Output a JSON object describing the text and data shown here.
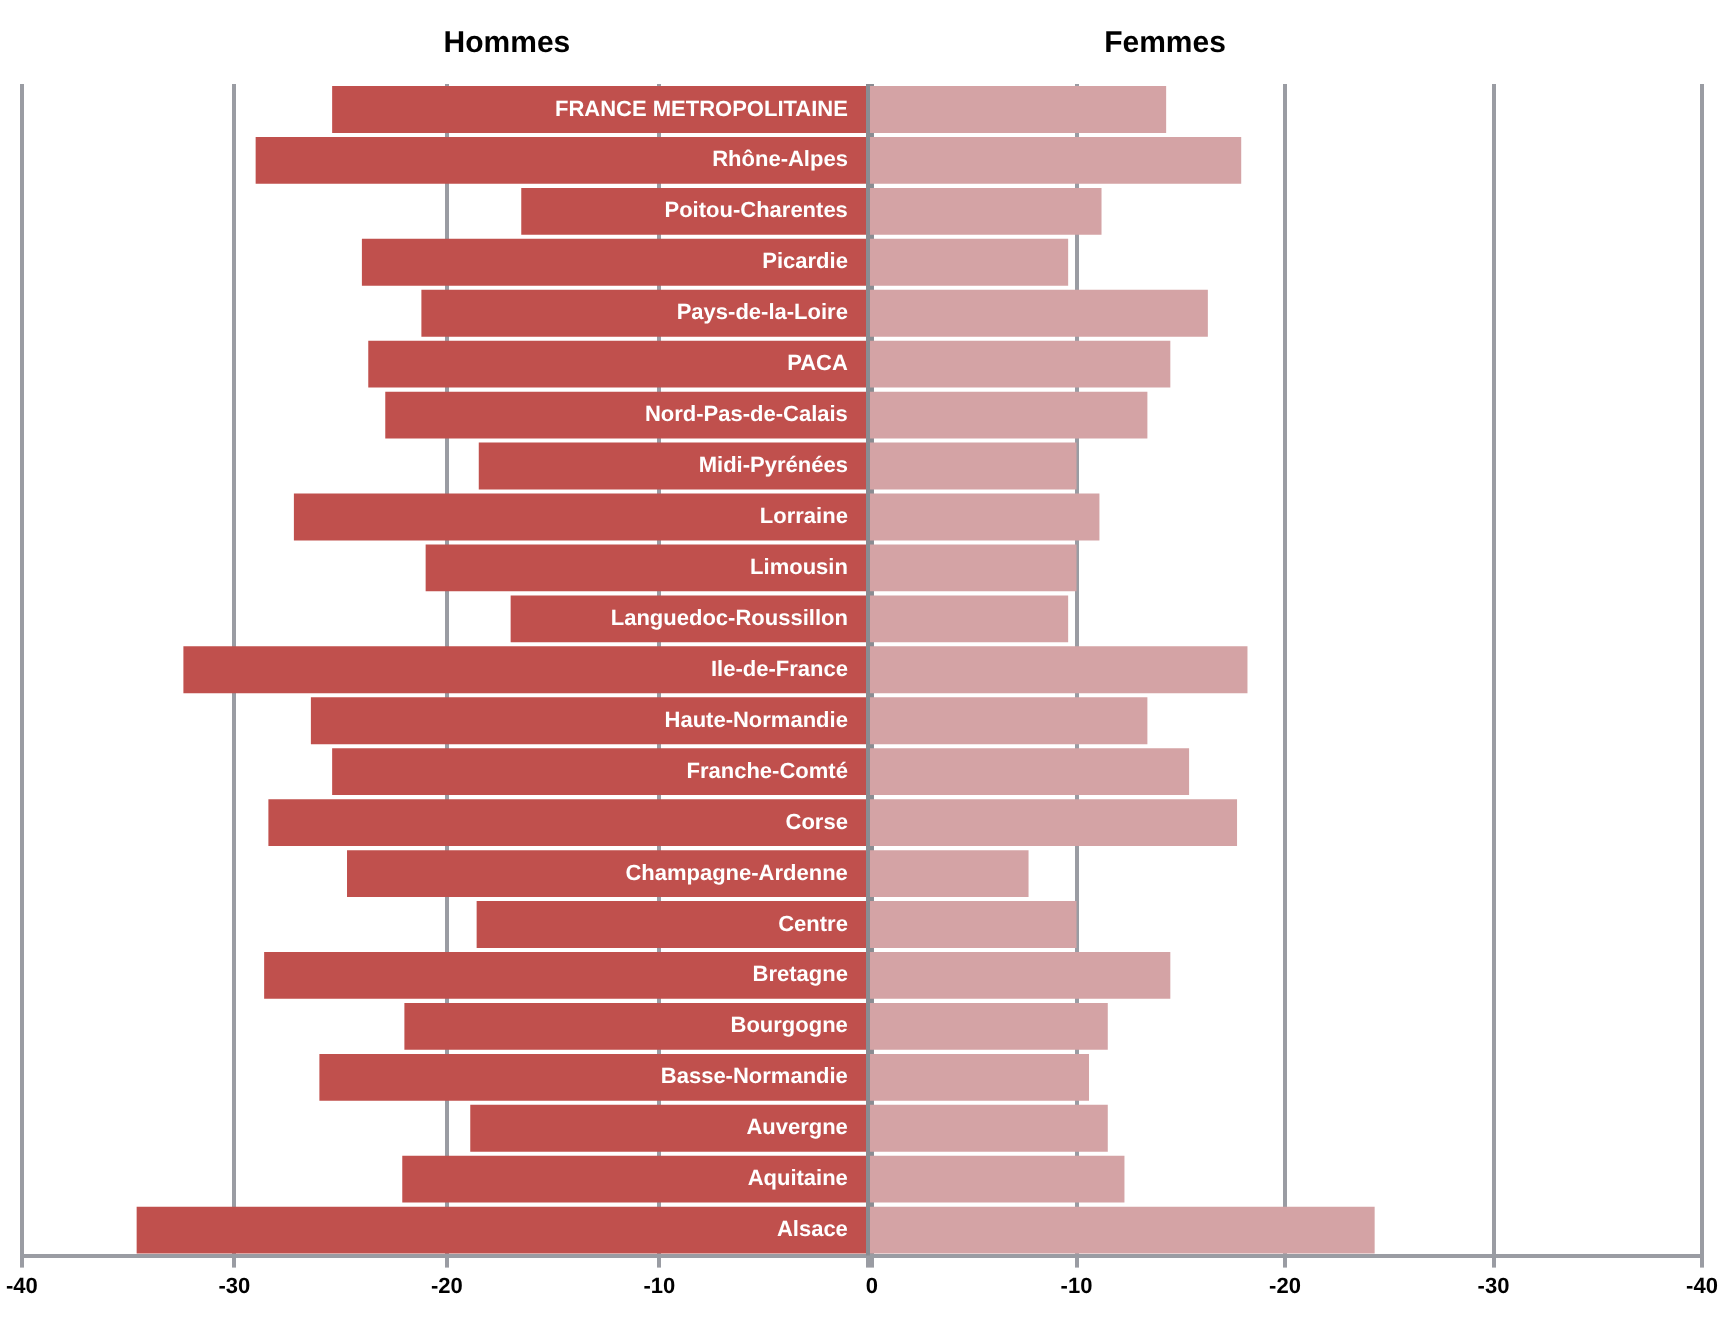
{
  "chart_data": [
    {
      "type": "bar",
      "orientation": "horizontal",
      "legend": false,
      "grid": "x",
      "categories": [
        "FRANCE METROPOLITAINE",
        "Rhône-Alpes",
        "Poitou-Charentes",
        "Picardie",
        "Pays-de-la-Loire",
        "PACA",
        "Nord-Pas-de-Calais",
        "Midi-Pyrénées",
        "Lorraine",
        "Limousin",
        "Languedoc-Roussillon",
        "Ile-de-France",
        "Haute-Normandie",
        "Franche-Comté",
        "Corse",
        "Champagne-Ardenne",
        "Centre",
        "Bretagne",
        "Bourgogne",
        "Basse-Normandie",
        "Auvergne",
        "Aquitaine",
        "Alsace"
      ],
      "series": [
        {
          "name": "Hommes",
          "color": "#c0504d",
          "values": [
            -25.4,
            -29.0,
            -16.5,
            -24.0,
            -21.2,
            -23.7,
            -22.9,
            -18.5,
            -27.2,
            -21.0,
            -17.0,
            -32.4,
            -26.4,
            -25.4,
            -28.4,
            -24.7,
            -18.6,
            -28.6,
            -22.0,
            -26.0,
            -18.9,
            -22.1,
            -34.6
          ]
        }
      ],
      "xlim": [
        -40,
        0
      ],
      "xticks": [
        -40,
        -30,
        -20,
        -10,
        0
      ]
    },
    {
      "type": "bar",
      "orientation": "horizontal",
      "legend": false,
      "grid": "x",
      "tick_labels": "x",
      "categories": [
        null,
        null,
        null,
        null,
        null,
        null,
        null,
        null,
        null,
        null,
        null,
        null,
        null,
        null,
        null,
        null,
        null,
        null,
        null,
        null,
        null,
        null,
        null
      ],
      "series": [
        {
          "name": "Femmes",
          "color": "#d4a3a5",
          "values": [
            -14.3,
            -17.9,
            -11.2,
            -9.6,
            -16.3,
            -14.5,
            -13.4,
            -10.0,
            -11.1,
            -10.0,
            -9.6,
            -18.2,
            -13.4,
            -15.4,
            -17.7,
            -7.7,
            -10.0,
            -14.5,
            -11.5,
            -10.6,
            -11.5,
            -12.3,
            -24.3
          ]
        }
      ],
      "xlim": [
        0,
        -40
      ],
      "xticks": [
        {
          "value": 0,
          "label": null
        },
        -10,
        -20,
        -30,
        -40
      ]
    }
  ]
}
